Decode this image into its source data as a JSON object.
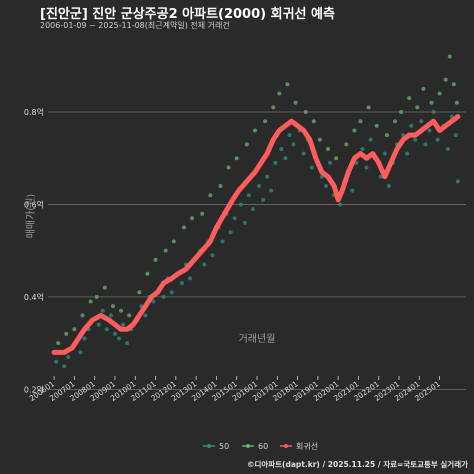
{
  "header": {
    "title": "[진안군] 진안 군상주공2 아파트(2000) 회귀선 예측",
    "subtitle": "2006-01-09 ~ 2025-11-08(최근계약일) 전체 거래건"
  },
  "footer": "©디아파트(dapt.kr) / 2025.11.25 / 자료=국토교통부 실거래가",
  "colors": {
    "background": "#2a2a2a",
    "series_50": "#2f8f80",
    "series_60": "#6bb36b",
    "regression": "#ff5c5c",
    "grid": "#8a8a8a"
  },
  "chart_data": {
    "type": "scatter",
    "xlabel": "거래년월",
    "ylabel": "매매가(원)",
    "y_ticks": [
      0.2,
      0.4,
      0.6,
      0.8
    ],
    "y_tick_labels": [
      "0.2억",
      "0.4억",
      "0.6억",
      "0.8억"
    ],
    "ylim": [
      0.19,
      0.96
    ],
    "x_range": [
      2005.7,
      2026.3
    ],
    "x_ticks": [
      2006,
      2007,
      2008,
      2009,
      2010,
      2011,
      2012,
      2013,
      2014,
      2015,
      2016,
      2017,
      2018,
      2019,
      2020,
      2021,
      2022,
      2023,
      2024,
      2025
    ],
    "x_tick_labels": [
      "200601",
      "200701",
      "200801",
      "200901",
      "201001",
      "201101",
      "201201",
      "201301",
      "201401",
      "201501",
      "201601",
      "201701",
      "201801",
      "201901",
      "202001",
      "202101",
      "202201",
      "202301",
      "202401",
      "202501"
    ],
    "grid": true,
    "legend_position": "bottom",
    "legend": [
      "50",
      "60",
      "회귀선"
    ],
    "series": [
      {
        "name": "50",
        "points": [
          [
            2006.1,
            0.26
          ],
          [
            2006.3,
            0.28
          ],
          [
            2006.5,
            0.25
          ],
          [
            2006.7,
            0.27
          ],
          [
            2006.9,
            0.29
          ],
          [
            2007.1,
            0.3
          ],
          [
            2007.3,
            0.28
          ],
          [
            2007.5,
            0.31
          ],
          [
            2007.7,
            0.33
          ],
          [
            2007.9,
            0.35
          ],
          [
            2008.2,
            0.34
          ],
          [
            2008.4,
            0.37
          ],
          [
            2008.6,
            0.33
          ],
          [
            2008.8,
            0.36
          ],
          [
            2009.0,
            0.32
          ],
          [
            2009.2,
            0.31
          ],
          [
            2009.4,
            0.34
          ],
          [
            2009.6,
            0.3
          ],
          [
            2009.8,
            0.33
          ],
          [
            2010.1,
            0.35
          ],
          [
            2010.3,
            0.38
          ],
          [
            2010.5,
            0.36
          ],
          [
            2010.7,
            0.4
          ],
          [
            2010.9,
            0.39
          ],
          [
            2011.2,
            0.42
          ],
          [
            2011.4,
            0.4
          ],
          [
            2011.6,
            0.44
          ],
          [
            2011.8,
            0.41
          ],
          [
            2012.1,
            0.45
          ],
          [
            2012.3,
            0.43
          ],
          [
            2012.5,
            0.47
          ],
          [
            2012.7,
            0.44
          ],
          [
            2012.9,
            0.48
          ],
          [
            2013.2,
            0.5
          ],
          [
            2013.4,
            0.47
          ],
          [
            2013.6,
            0.52
          ],
          [
            2013.8,
            0.49
          ],
          [
            2014.1,
            0.55
          ],
          [
            2014.3,
            0.52
          ],
          [
            2014.5,
            0.58
          ],
          [
            2014.7,
            0.54
          ],
          [
            2014.9,
            0.57
          ],
          [
            2015.2,
            0.6
          ],
          [
            2015.4,
            0.56
          ],
          [
            2015.6,
            0.62
          ],
          [
            2015.8,
            0.59
          ],
          [
            2016.1,
            0.64
          ],
          [
            2016.3,
            0.61
          ],
          [
            2016.5,
            0.66
          ],
          [
            2016.7,
            0.63
          ],
          [
            2016.9,
            0.69
          ],
          [
            2017.2,
            0.72
          ],
          [
            2017.4,
            0.7
          ],
          [
            2017.6,
            0.75
          ],
          [
            2017.8,
            0.73
          ],
          [
            2018.1,
            0.76
          ],
          [
            2018.3,
            0.71
          ],
          [
            2018.5,
            0.74
          ],
          [
            2018.7,
            0.68
          ],
          [
            2018.9,
            0.7
          ],
          [
            2019.2,
            0.66
          ],
          [
            2019.4,
            0.64
          ],
          [
            2019.6,
            0.69
          ],
          [
            2019.8,
            0.62
          ],
          [
            2020.1,
            0.6
          ],
          [
            2020.3,
            0.65
          ],
          [
            2020.5,
            0.67
          ],
          [
            2020.7,
            0.63
          ],
          [
            2020.9,
            0.69
          ],
          [
            2021.2,
            0.72
          ],
          [
            2021.4,
            0.68
          ],
          [
            2021.6,
            0.74
          ],
          [
            2021.8,
            0.7
          ],
          [
            2022.1,
            0.66
          ],
          [
            2022.3,
            0.71
          ],
          [
            2022.5,
            0.64
          ],
          [
            2022.7,
            0.69
          ],
          [
            2022.9,
            0.73
          ],
          [
            2023.2,
            0.75
          ],
          [
            2023.4,
            0.71
          ],
          [
            2023.6,
            0.77
          ],
          [
            2023.8,
            0.74
          ],
          [
            2024.1,
            0.78
          ],
          [
            2024.3,
            0.73
          ],
          [
            2024.5,
            0.76
          ],
          [
            2024.7,
            0.8
          ],
          [
            2024.9,
            0.74
          ],
          [
            2025.2,
            0.77
          ],
          [
            2025.4,
            0.72
          ],
          [
            2025.6,
            0.79
          ],
          [
            2025.8,
            0.75
          ],
          [
            2025.9,
            0.65
          ]
        ]
      },
      {
        "name": "60",
        "points": [
          [
            2006.2,
            0.3
          ],
          [
            2006.6,
            0.32
          ],
          [
            2007.0,
            0.33
          ],
          [
            2007.4,
            0.36
          ],
          [
            2007.8,
            0.39
          ],
          [
            2008.1,
            0.4
          ],
          [
            2008.5,
            0.42
          ],
          [
            2008.9,
            0.38
          ],
          [
            2009.3,
            0.37
          ],
          [
            2009.7,
            0.36
          ],
          [
            2010.2,
            0.41
          ],
          [
            2010.6,
            0.45
          ],
          [
            2011.0,
            0.48
          ],
          [
            2011.5,
            0.5
          ],
          [
            2011.9,
            0.52
          ],
          [
            2012.4,
            0.55
          ],
          [
            2012.8,
            0.57
          ],
          [
            2013.3,
            0.58
          ],
          [
            2013.7,
            0.62
          ],
          [
            2014.2,
            0.64
          ],
          [
            2014.6,
            0.68
          ],
          [
            2015.0,
            0.7
          ],
          [
            2015.5,
            0.73
          ],
          [
            2015.9,
            0.76
          ],
          [
            2016.4,
            0.78
          ],
          [
            2016.8,
            0.81
          ],
          [
            2017.1,
            0.84
          ],
          [
            2017.5,
            0.86
          ],
          [
            2017.9,
            0.82
          ],
          [
            2018.4,
            0.8
          ],
          [
            2018.8,
            0.78
          ],
          [
            2019.1,
            0.74
          ],
          [
            2019.5,
            0.72
          ],
          [
            2019.9,
            0.7
          ],
          [
            2020.4,
            0.73
          ],
          [
            2020.8,
            0.76
          ],
          [
            2021.1,
            0.78
          ],
          [
            2021.5,
            0.81
          ],
          [
            2021.9,
            0.77
          ],
          [
            2022.4,
            0.75
          ],
          [
            2022.8,
            0.78
          ],
          [
            2023.1,
            0.8
          ],
          [
            2023.5,
            0.83
          ],
          [
            2023.9,
            0.81
          ],
          [
            2024.2,
            0.85
          ],
          [
            2024.6,
            0.82
          ],
          [
            2025.0,
            0.84
          ],
          [
            2025.3,
            0.87
          ],
          [
            2025.5,
            0.92
          ],
          [
            2025.7,
            0.86
          ],
          [
            2025.85,
            0.82
          ]
        ]
      }
    ],
    "regression": [
      [
        2006.0,
        0.28
      ],
      [
        2006.5,
        0.28
      ],
      [
        2006.9,
        0.29
      ],
      [
        2007.2,
        0.31
      ],
      [
        2007.5,
        0.33
      ],
      [
        2007.9,
        0.35
      ],
      [
        2008.3,
        0.36
      ],
      [
        2008.7,
        0.35
      ],
      [
        2009.0,
        0.34
      ],
      [
        2009.3,
        0.33
      ],
      [
        2009.6,
        0.33
      ],
      [
        2009.9,
        0.34
      ],
      [
        2010.2,
        0.36
      ],
      [
        2010.5,
        0.38
      ],
      [
        2010.8,
        0.4
      ],
      [
        2011.1,
        0.41
      ],
      [
        2011.4,
        0.43
      ],
      [
        2011.8,
        0.44
      ],
      [
        2012.1,
        0.45
      ],
      [
        2012.5,
        0.46
      ],
      [
        2012.9,
        0.48
      ],
      [
        2013.3,
        0.5
      ],
      [
        2013.7,
        0.52
      ],
      [
        2014.0,
        0.55
      ],
      [
        2014.4,
        0.58
      ],
      [
        2014.8,
        0.61
      ],
      [
        2015.1,
        0.63
      ],
      [
        2015.5,
        0.65
      ],
      [
        2015.9,
        0.67
      ],
      [
        2016.2,
        0.69
      ],
      [
        2016.5,
        0.71
      ],
      [
        2016.8,
        0.74
      ],
      [
        2017.1,
        0.76
      ],
      [
        2017.4,
        0.77
      ],
      [
        2017.7,
        0.78
      ],
      [
        2018.0,
        0.77
      ],
      [
        2018.3,
        0.76
      ],
      [
        2018.6,
        0.74
      ],
      [
        2018.9,
        0.7
      ],
      [
        2019.2,
        0.67
      ],
      [
        2019.5,
        0.66
      ],
      [
        2019.8,
        0.64
      ],
      [
        2020.0,
        0.61
      ],
      [
        2020.2,
        0.63
      ],
      [
        2020.5,
        0.67
      ],
      [
        2020.8,
        0.7
      ],
      [
        2021.1,
        0.71
      ],
      [
        2021.4,
        0.7
      ],
      [
        2021.7,
        0.71
      ],
      [
        2022.0,
        0.69
      ],
      [
        2022.3,
        0.66
      ],
      [
        2022.6,
        0.69
      ],
      [
        2022.9,
        0.72
      ],
      [
        2023.2,
        0.74
      ],
      [
        2023.5,
        0.75
      ],
      [
        2023.8,
        0.75
      ],
      [
        2024.1,
        0.76
      ],
      [
        2024.4,
        0.77
      ],
      [
        2024.7,
        0.78
      ],
      [
        2025.0,
        0.76
      ],
      [
        2025.3,
        0.77
      ],
      [
        2025.6,
        0.78
      ],
      [
        2025.9,
        0.79
      ]
    ]
  }
}
